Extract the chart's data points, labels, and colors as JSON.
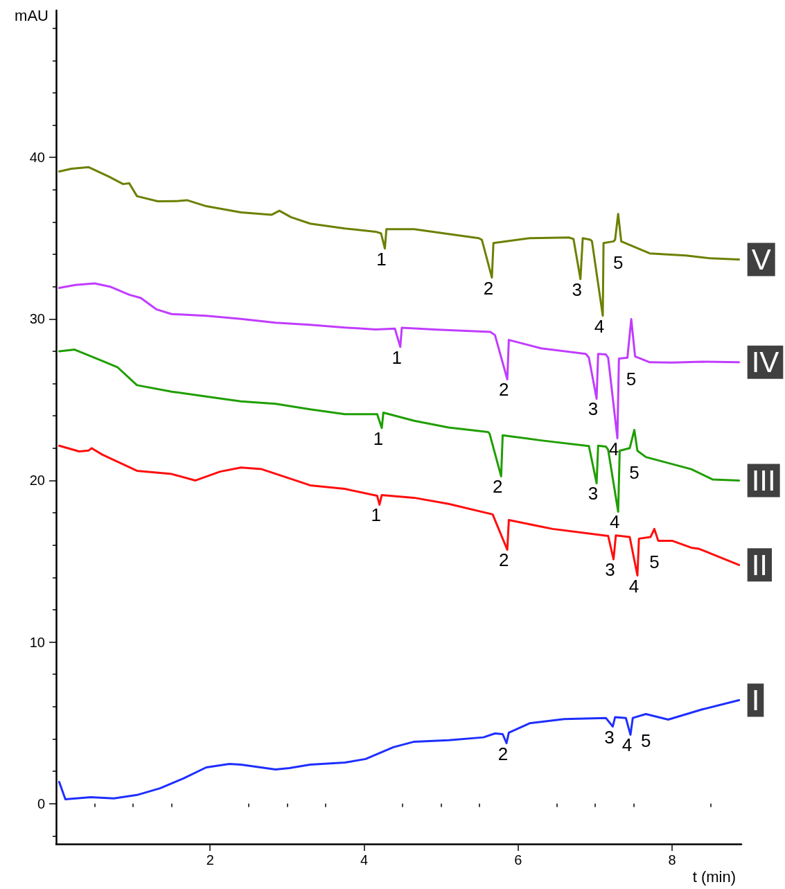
{
  "chart_data": {
    "type": "line",
    "xlabel": "t (min)",
    "ylabel": "mAU",
    "xlim": [
      0,
      8.9
    ],
    "xticks": [
      {
        "value": 0.5,
        "label": null
      },
      {
        "value": 1,
        "label": null
      },
      {
        "value": 1.5,
        "label": null
      },
      2,
      {
        "value": 2.5,
        "label": null
      },
      {
        "value": 3,
        "label": null
      },
      {
        "value": 3.5,
        "label": null
      },
      4,
      {
        "value": 4.5,
        "label": null
      },
      {
        "value": 5,
        "label": null
      },
      {
        "value": 5.5,
        "label": null
      },
      6,
      {
        "value": 6.5,
        "label": null
      },
      {
        "value": 7,
        "label": null
      },
      {
        "value": 7.5,
        "label": null
      },
      8,
      {
        "value": 8.5,
        "label": null
      }
    ],
    "ylim": [
      -2.5,
      49.1
    ],
    "yticks": [
      {
        "value": -2,
        "label": null
      },
      0,
      {
        "value": 2,
        "label": null
      },
      {
        "value": 4,
        "label": null
      },
      {
        "value": 6,
        "label": null
      },
      {
        "value": 8,
        "label": null
      },
      10,
      {
        "value": 12,
        "label": null
      },
      {
        "value": 14,
        "label": null
      },
      {
        "value": 16,
        "label": null
      },
      {
        "value": 18,
        "label": null
      },
      20,
      {
        "value": 22,
        "label": null
      },
      {
        "value": 24,
        "label": null
      },
      {
        "value": 26,
        "label": null
      },
      {
        "value": 28,
        "label": null
      },
      30,
      {
        "value": 32,
        "label": null
      },
      {
        "value": 34,
        "label": null
      },
      {
        "value": 36,
        "label": null
      },
      {
        "value": 38,
        "label": null
      },
      40,
      {
        "value": 42,
        "label": null
      },
      {
        "value": 44,
        "label": null
      },
      {
        "value": 46,
        "label": null
      },
      {
        "value": 48,
        "label": null
      }
    ],
    "grid": false,
    "legend": false,
    "marker": "none",
    "series": [
      {
        "name": "I",
        "color": "#1e2eff",
        "x": [
          0.04,
          0.12,
          0.45,
          0.75,
          1.05,
          1.35,
          1.65,
          1.95,
          2.25,
          2.4,
          2.85,
          3.03,
          3.3,
          3.75,
          4.02,
          4.38,
          4.65,
          5.1,
          5.55,
          5.7,
          5.8,
          5.85,
          5.88,
          6.15,
          6.6,
          7.14,
          7.23,
          7.26,
          7.4,
          7.46,
          7.49,
          7.66,
          7.95,
          8.4,
          8.87
        ],
        "values": [
          1.34,
          0.27,
          0.4,
          0.32,
          0.53,
          0.95,
          1.55,
          2.24,
          2.45,
          2.41,
          2.11,
          2.2,
          2.41,
          2.54,
          2.76,
          3.49,
          3.83,
          3.92,
          4.1,
          4.34,
          4.3,
          3.74,
          4.39,
          4.97,
          5.23,
          5.3,
          4.77,
          5.35,
          5.3,
          4.26,
          5.3,
          5.54,
          5.2,
          5.84,
          6.4
        ]
      },
      {
        "name": "II",
        "color": "#ff0d0d",
        "x": [
          0.04,
          0.3,
          0.42,
          0.46,
          0.6,
          1.05,
          1.5,
          1.81,
          2.13,
          2.4,
          2.67,
          3.03,
          3.3,
          3.75,
          4.17,
          4.2,
          4.23,
          4.65,
          5.1,
          5.67,
          5.86,
          5.88,
          6.45,
          7.17,
          7.24,
          7.27,
          7.45,
          7.55,
          7.57,
          7.72,
          7.77,
          7.82,
          8.0,
          8.25,
          8.35,
          8.87
        ],
        "values": [
          22.15,
          21.8,
          21.85,
          22.0,
          21.6,
          20.6,
          20.4,
          20.0,
          20.55,
          20.8,
          20.7,
          20.13,
          19.7,
          19.48,
          19.05,
          18.5,
          19.1,
          18.93,
          18.55,
          17.9,
          15.71,
          17.55,
          17.0,
          16.57,
          15.12,
          16.6,
          16.5,
          14.12,
          16.4,
          16.5,
          17.0,
          16.27,
          16.27,
          15.84,
          15.77,
          14.77
        ]
      },
      {
        "name": "III",
        "color": "#1f9e00",
        "x": [
          0.04,
          0.24,
          0.6,
          0.8,
          1.05,
          1.5,
          1.95,
          2.4,
          2.85,
          3.3,
          3.75,
          4.17,
          4.23,
          4.25,
          4.65,
          5.1,
          5.61,
          5.63,
          5.78,
          5.8,
          6.3,
          6.92,
          7.02,
          7.04,
          7.14,
          7.17,
          7.3,
          7.32,
          7.45,
          7.51,
          7.55,
          7.66,
          8.25,
          8.53,
          8.87
        ],
        "values": [
          28.0,
          28.1,
          27.4,
          27.0,
          25.9,
          25.5,
          25.2,
          24.9,
          24.75,
          24.4,
          24.1,
          24.1,
          23.25,
          24.2,
          23.7,
          23.28,
          23.0,
          22.9,
          20.26,
          22.8,
          22.48,
          22.13,
          19.83,
          22.15,
          22.1,
          21.9,
          18.07,
          21.84,
          22.0,
          23.13,
          21.84,
          21.45,
          20.7,
          20.06,
          20.0
        ]
      },
      {
        "name": "IV",
        "color": "#c03cff",
        "x": [
          0.04,
          0.25,
          0.5,
          0.7,
          0.95,
          1.1,
          1.3,
          1.5,
          1.95,
          2.4,
          2.85,
          3.3,
          3.75,
          4.15,
          4.4,
          4.47,
          4.49,
          4.95,
          5.64,
          5.7,
          5.86,
          5.88,
          6.3,
          6.88,
          6.92,
          7.02,
          7.04,
          7.14,
          7.17,
          7.29,
          7.31,
          7.42,
          7.47,
          7.52,
          7.71,
          8.0,
          8.4,
          8.87
        ],
        "values": [
          31.92,
          32.1,
          32.2,
          32.0,
          31.5,
          31.3,
          30.6,
          30.3,
          30.2,
          30.0,
          29.77,
          29.64,
          29.47,
          29.35,
          29.4,
          28.27,
          29.45,
          29.34,
          29.2,
          29.0,
          26.26,
          28.7,
          28.18,
          27.84,
          27.6,
          25.06,
          27.84,
          27.8,
          27.6,
          22.61,
          27.55,
          27.6,
          29.99,
          27.68,
          27.32,
          27.3,
          27.35,
          27.32
        ]
      },
      {
        "name": "V",
        "color": "#6b8000",
        "x": [
          0.04,
          0.2,
          0.42,
          0.69,
          0.87,
          0.95,
          1.05,
          1.32,
          1.59,
          1.7,
          1.95,
          2.4,
          2.8,
          2.9,
          3.05,
          3.3,
          3.75,
          4.15,
          4.22,
          4.27,
          4.29,
          4.65,
          5.1,
          5.49,
          5.53,
          5.66,
          5.68,
          6.15,
          6.66,
          6.72,
          6.81,
          6.84,
          6.94,
          6.96,
          7.1,
          7.11,
          7.24,
          7.26,
          7.3,
          7.34,
          7.71,
          8.18,
          8.5,
          8.87
        ],
        "values": [
          39.13,
          39.3,
          39.4,
          38.8,
          38.35,
          38.4,
          37.6,
          37.28,
          37.3,
          37.35,
          36.98,
          36.6,
          36.45,
          36.7,
          36.3,
          35.9,
          35.6,
          35.4,
          35.3,
          34.36,
          35.56,
          35.56,
          35.26,
          35.0,
          34.9,
          32.56,
          34.7,
          35.0,
          35.04,
          34.95,
          32.47,
          35.0,
          34.9,
          34.8,
          30.2,
          34.7,
          34.8,
          34.9,
          36.5,
          34.8,
          34.06,
          33.93,
          33.75,
          33.68
        ]
      }
    ],
    "annotations": [
      {
        "text": "1",
        "x": 4.27,
        "y": 34.36
      },
      {
        "text": "2",
        "x": 5.66,
        "y": 32.56
      },
      {
        "text": "3",
        "x": 6.81,
        "y": 32.47
      },
      {
        "text": "4",
        "x": 7.1,
        "y": 30.2
      },
      {
        "text": "5",
        "x": 7.3,
        "y": 36.5
      },
      {
        "text": "1",
        "x": 4.47,
        "y": 28.27
      },
      {
        "text": "2",
        "x": 5.86,
        "y": 26.26
      },
      {
        "text": "3",
        "x": 7.02,
        "y": 25.06
      },
      {
        "text": "4",
        "x": 7.29,
        "y": 22.61
      },
      {
        "text": "5",
        "x": 7.47,
        "y": 29.99
      },
      {
        "text": "1",
        "x": 4.23,
        "y": 23.25
      },
      {
        "text": "2",
        "x": 5.78,
        "y": 20.26
      },
      {
        "text": "3",
        "x": 7.02,
        "y": 19.83
      },
      {
        "text": "4",
        "x": 7.3,
        "y": 18.07
      },
      {
        "text": "5",
        "x": 7.51,
        "y": 23.13
      },
      {
        "text": "1",
        "x": 4.2,
        "y": 18.5
      },
      {
        "text": "2",
        "x": 5.86,
        "y": 15.71
      },
      {
        "text": "3",
        "x": 7.24,
        "y": 15.12
      },
      {
        "text": "4",
        "x": 7.55,
        "y": 14.12
      },
      {
        "text": "5",
        "x": 7.77,
        "y": 17.0
      },
      {
        "text": "2",
        "x": 5.85,
        "y": 3.74
      },
      {
        "text": "3",
        "x": 7.23,
        "y": 4.77
      },
      {
        "text": "4",
        "x": 7.46,
        "y": 4.26
      },
      {
        "text": "5",
        "x": 7.66,
        "y": 5.54
      }
    ]
  }
}
